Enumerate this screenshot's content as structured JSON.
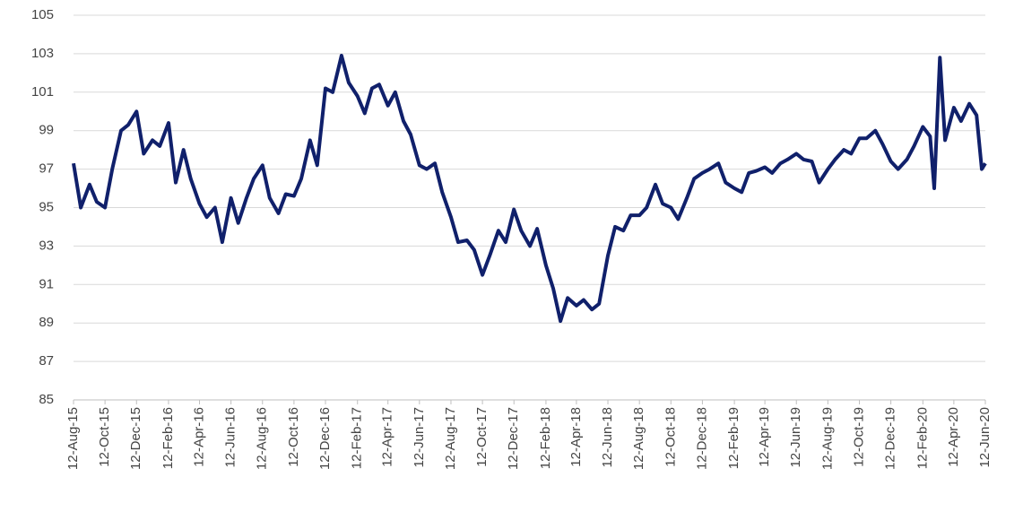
{
  "chart_data": {
    "type": "line",
    "x": [
      "12-Aug-15",
      "26-Aug-15",
      "12-Sep-15",
      "26-Sep-15",
      "12-Oct-15",
      "26-Oct-15",
      "12-Nov-15",
      "26-Nov-15",
      "12-Dec-15",
      "26-Dec-15",
      "12-Jan-16",
      "26-Jan-16",
      "12-Feb-16",
      "26-Feb-16",
      "12-Mar-16",
      "26-Mar-16",
      "12-Apr-16",
      "26-Apr-16",
      "12-May-16",
      "26-May-16",
      "12-Jun-16",
      "26-Jun-16",
      "12-Jul-16",
      "26-Jul-16",
      "12-Aug-16",
      "26-Aug-16",
      "12-Sep-16",
      "26-Sep-16",
      "12-Oct-16",
      "26-Oct-16",
      "12-Nov-16",
      "26-Nov-16",
      "12-Dec-16",
      "26-Dec-16",
      "12-Jan-17",
      "26-Jan-17",
      "12-Feb-17",
      "26-Feb-17",
      "12-Mar-17",
      "26-Mar-17",
      "12-Apr-17",
      "26-Apr-17",
      "12-May-17",
      "26-May-17",
      "12-Jun-17",
      "26-Jun-17",
      "12-Jul-17",
      "26-Jul-17",
      "12-Aug-17",
      "26-Aug-17",
      "12-Sep-17",
      "26-Sep-17",
      "12-Oct-17",
      "26-Oct-17",
      "12-Nov-17",
      "26-Nov-17",
      "12-Dec-17",
      "26-Dec-17",
      "12-Jan-18",
      "26-Jan-18",
      "12-Feb-18",
      "26-Feb-18",
      "12-Mar-18",
      "26-Mar-18",
      "12-Apr-18",
      "26-Apr-18",
      "12-May-18",
      "26-May-18",
      "12-Jun-18",
      "26-Jun-18",
      "12-Jul-18",
      "26-Jul-18",
      "12-Aug-18",
      "26-Aug-18",
      "12-Sep-18",
      "26-Sep-18",
      "12-Oct-18",
      "26-Oct-18",
      "12-Nov-18",
      "26-Nov-18",
      "12-Dec-18",
      "26-Dec-18",
      "12-Jan-19",
      "26-Jan-19",
      "12-Feb-19",
      "26-Feb-19",
      "12-Mar-19",
      "26-Mar-19",
      "12-Apr-19",
      "26-Apr-19",
      "12-May-19",
      "26-May-19",
      "12-Jun-19",
      "26-Jun-19",
      "12-Jul-19",
      "26-Jul-19",
      "12-Aug-19",
      "26-Aug-19",
      "12-Sep-19",
      "26-Sep-19",
      "12-Oct-19",
      "26-Oct-19",
      "12-Nov-19",
      "26-Nov-19",
      "12-Dec-19",
      "26-Dec-19",
      "12-Jan-20",
      "26-Jan-20",
      "12-Feb-20",
      "26-Feb-20",
      "05-Mar-20",
      "16-Mar-20",
      "26-Mar-20",
      "12-Apr-20",
      "26-Apr-20",
      "12-May-20",
      "26-May-20",
      "05-Jun-20",
      "12-Jun-20"
    ],
    "series": [
      {
        "color": "#10206b",
        "values": [
          97.3,
          95.0,
          96.2,
          95.3,
          95.0,
          97.0,
          99.0,
          99.3,
          100.0,
          97.8,
          98.5,
          98.2,
          99.4,
          96.3,
          98.0,
          96.5,
          95.2,
          94.5,
          95.0,
          93.2,
          95.5,
          94.2,
          95.5,
          96.5,
          97.2,
          95.5,
          94.7,
          95.7,
          95.6,
          96.5,
          98.5,
          97.2,
          101.2,
          101.0,
          102.9,
          101.5,
          100.8,
          99.9,
          101.2,
          101.4,
          100.3,
          101.0,
          99.5,
          98.8,
          97.2,
          97.0,
          97.3,
          95.8,
          94.5,
          93.2,
          93.3,
          92.8,
          91.5,
          92.5,
          93.8,
          93.2,
          94.9,
          93.8,
          93.0,
          93.9,
          92.0,
          90.8,
          89.1,
          90.3,
          89.9,
          90.2,
          89.7,
          90.0,
          92.5,
          94.0,
          93.8,
          94.6,
          94.6,
          95.0,
          96.2,
          95.2,
          95.0,
          94.4,
          95.5,
          96.5,
          96.8,
          97.0,
          97.3,
          96.3,
          96.0,
          95.8,
          96.8,
          96.9,
          97.1,
          96.8,
          97.3,
          97.5,
          97.8,
          97.5,
          97.4,
          96.3,
          97.0,
          97.5,
          98.0,
          97.8,
          98.6,
          98.6,
          99.0,
          98.3,
          97.4,
          97.0,
          97.5,
          98.2,
          99.2,
          98.7,
          96.0,
          102.8,
          98.5,
          100.2,
          99.5,
          100.4,
          99.8,
          97.0,
          97.3
        ]
      }
    ],
    "xticks": [
      "12-Aug-15",
      "12-Oct-15",
      "12-Dec-15",
      "12-Feb-16",
      "12-Apr-16",
      "12-Jun-16",
      "12-Aug-16",
      "12-Oct-16",
      "12-Dec-16",
      "12-Feb-17",
      "12-Apr-17",
      "12-Jun-17",
      "12-Aug-17",
      "12-Oct-17",
      "12-Dec-17",
      "12-Feb-18",
      "12-Apr-18",
      "12-Jun-18",
      "12-Aug-18",
      "12-Oct-18",
      "12-Dec-18",
      "12-Feb-19",
      "12-Apr-19",
      "12-Jun-19",
      "12-Aug-19",
      "12-Oct-19",
      "12-Dec-19",
      "12-Feb-20",
      "12-Apr-20",
      "12-Jun-20"
    ],
    "ylim": [
      85,
      105
    ],
    "yticks": [
      85,
      87,
      89,
      91,
      93,
      95,
      97,
      99,
      101,
      103,
      105
    ],
    "grid": true
  }
}
